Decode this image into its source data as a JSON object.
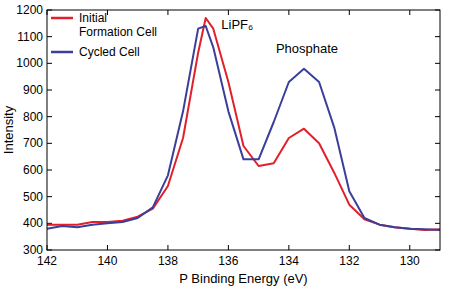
{
  "chart_data": {
    "type": "line",
    "x_label": "P Binding Energy (eV)",
    "y_label": "Intensity",
    "annotations": [
      "LiPF₆",
      "Phosphate"
    ],
    "x": [
      142,
      141.5,
      141,
      140.5,
      140,
      139.5,
      139,
      138.5,
      138,
      137.5,
      137,
      136.75,
      136.5,
      136,
      135.5,
      135,
      134.5,
      134,
      133.5,
      133,
      132.5,
      132,
      131.5,
      131,
      130.5,
      130,
      129.5,
      129
    ],
    "series": [
      {
        "name": "Initial Formation Cell",
        "color": "#e0202a",
        "values": [
          395,
          395,
          395,
          405,
          405,
          410,
          425,
          455,
          540,
          720,
          1040,
          1170,
          1130,
          930,
          690,
          615,
          625,
          720,
          755,
          700,
          590,
          470,
          415,
          395,
          385,
          380,
          375,
          378
        ]
      },
      {
        "name": "Cycled Cell",
        "color": "#3a3f9a",
        "values": [
          380,
          390,
          385,
          395,
          400,
          405,
          420,
          460,
          580,
          820,
          1130,
          1140,
          1060,
          820,
          640,
          640,
          780,
          930,
          980,
          930,
          760,
          520,
          420,
          395,
          385,
          380,
          378,
          375
        ]
      }
    ],
    "xlim": [
      142,
      129
    ],
    "xticks": [
      142,
      140,
      138,
      136,
      134,
      132,
      130
    ],
    "ylim": [
      300,
      1200
    ],
    "yticks": [
      300,
      400,
      500,
      600,
      700,
      800,
      900,
      1000,
      1100,
      1200
    ],
    "legend": "upper-left"
  }
}
